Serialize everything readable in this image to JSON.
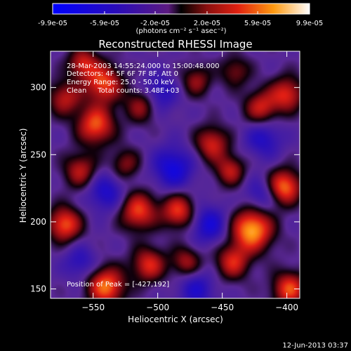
{
  "colorbar": {
    "tick_labels": [
      "-9.9e-05",
      "-5.9e-05",
      "-2.0e-05",
      "2.0e-05",
      "5.9e-05",
      "9.9e-05"
    ],
    "tick_values": [
      -9.9e-05,
      -5.9e-05,
      -2e-05,
      2e-05,
      5.9e-05,
      9.9e-05
    ],
    "range": [
      -9.9e-05,
      9.9e-05
    ],
    "unit_label": "(photons cm⁻² s⁻¹ asec⁻²)"
  },
  "chart_data": {
    "type": "heatmap",
    "title": "Reconstructed RHESSI Image",
    "xlabel": "Heliocentric X (arcsec)",
    "ylabel": "Heliocentric Y (arcsec)",
    "xlim": [
      -583,
      -390
    ],
    "ylim": [
      143,
      327
    ],
    "xticks": [
      -550,
      -500,
      -450,
      -400
    ],
    "xtick_labels": [
      "−550",
      "−500",
      "−450",
      "−400"
    ],
    "yticks": [
      150,
      200,
      250,
      300
    ],
    "ytick_labels": [
      "150",
      "200",
      "250",
      "300"
    ],
    "peak": {
      "x": -427,
      "y": 192
    },
    "sources": [
      {
        "x": -427,
        "y": 194,
        "w": 1.0,
        "r": 11
      },
      {
        "x": -402,
        "y": 226,
        "w": 0.85,
        "r": 9
      },
      {
        "x": -540,
        "y": 152,
        "w": 0.85,
        "r": 10
      },
      {
        "x": -572,
        "y": 198,
        "w": 0.78,
        "r": 9
      },
      {
        "x": -548,
        "y": 272,
        "w": 0.78,
        "r": 10
      },
      {
        "x": -542,
        "y": 303,
        "w": 0.75,
        "r": 10
      },
      {
        "x": -558,
        "y": 318,
        "w": 0.6,
        "r": 8
      },
      {
        "x": -572,
        "y": 292,
        "w": 0.55,
        "r": 9
      },
      {
        "x": -515,
        "y": 208,
        "w": 0.72,
        "r": 10
      },
      {
        "x": -507,
        "y": 168,
        "w": 0.65,
        "r": 9
      },
      {
        "x": -484,
        "y": 208,
        "w": 0.7,
        "r": 9
      },
      {
        "x": -458,
        "y": 258,
        "w": 0.62,
        "r": 9
      },
      {
        "x": -444,
        "y": 238,
        "w": 0.55,
        "r": 8
      },
      {
        "x": -442,
        "y": 170,
        "w": 0.62,
        "r": 9
      },
      {
        "x": -398,
        "y": 150,
        "w": 0.75,
        "r": 9
      },
      {
        "x": -400,
        "y": 295,
        "w": 0.65,
        "r": 9
      },
      {
        "x": -420,
        "y": 285,
        "w": 0.6,
        "r": 9
      },
      {
        "x": -512,
        "y": 287,
        "w": 0.55,
        "r": 9
      },
      {
        "x": -560,
        "y": 238,
        "w": 0.55,
        "r": 9
      },
      {
        "x": -478,
        "y": 170,
        "w": 0.5,
        "r": 8
      },
      {
        "x": -470,
        "y": 305,
        "w": 0.45,
        "r": 8
      },
      {
        "x": -440,
        "y": 312,
        "w": 0.4,
        "r": 8
      },
      {
        "x": -525,
        "y": 243,
        "w": 0.42,
        "r": 8
      },
      {
        "x": -488,
        "y": 240,
        "w": -0.55,
        "r": 11
      },
      {
        "x": -500,
        "y": 295,
        "w": -0.45,
        "r": 10
      },
      {
        "x": -460,
        "y": 198,
        "w": -0.5,
        "r": 10
      },
      {
        "x": -540,
        "y": 222,
        "w": -0.45,
        "r": 10
      },
      {
        "x": -418,
        "y": 262,
        "w": -0.4,
        "r": 10
      },
      {
        "x": -470,
        "y": 150,
        "w": -0.4,
        "r": 10
      },
      {
        "x": -560,
        "y": 170,
        "w": -0.35,
        "r": 9
      },
      {
        "x": -420,
        "y": 220,
        "w": -0.35,
        "r": 9
      }
    ]
  },
  "annotation": {
    "time_range": "28-Mar-2003 14:55:24.000 to 15:00:48.000",
    "detectors": "Detectors: 4F 5F 6F 7F 8F, Att 0",
    "energy_range": "Energy Range: 25.0 - 50.0 keV",
    "clean_counts": "Clean     Total counts: 3.48E+03",
    "peak_position": "Position of Peak = [-427,192]"
  },
  "footer": {
    "timestamp": "12-Jun-2013 03:37"
  }
}
